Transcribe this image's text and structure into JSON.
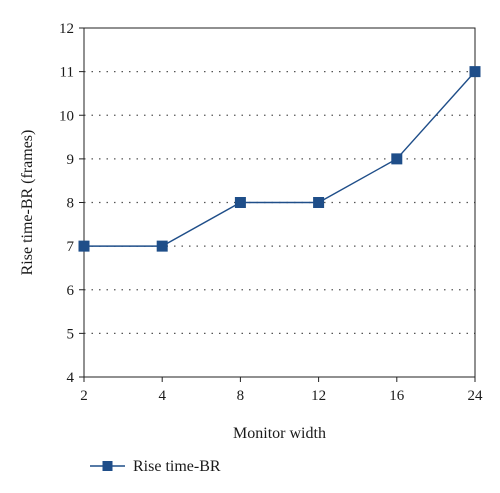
{
  "chart_data": {
    "type": "line",
    "categories": [
      "2",
      "4",
      "8",
      "12",
      "16",
      "24"
    ],
    "series": [
      {
        "name": "Rise time-BR",
        "values": [
          7,
          7,
          8,
          8,
          9,
          11
        ]
      }
    ],
    "title": "",
    "xlabel": "Monitor width",
    "ylabel": "Rise time-BR (frames)",
    "ylim": [
      4,
      12
    ],
    "yticks": [
      "4",
      "5",
      "6",
      "7",
      "8",
      "9",
      "10",
      "11",
      "12"
    ],
    "grid": "horizontal dotted",
    "legend": "bottom-left",
    "colors": {
      "series": "#1f4e89",
      "marker": "#1f4e89",
      "axis": "#222222",
      "grid": "#555555"
    }
  }
}
